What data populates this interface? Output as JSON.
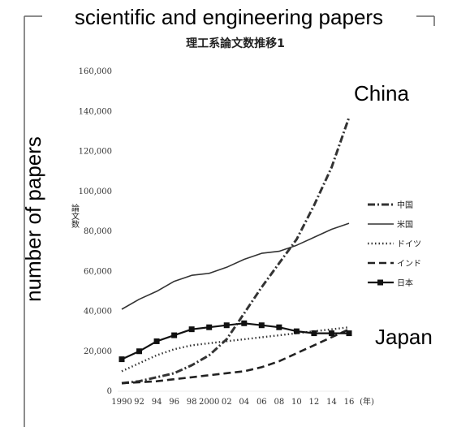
{
  "overlay": {
    "title": "scientific and engineering papers",
    "ylabel": "number of papers",
    "annotation_top": "China",
    "annotation_bottom": "Japan"
  },
  "chart_data": {
    "type": "line",
    "title": "理工系論文数推移1",
    "ylabel": "論文数",
    "xlabel": "(年)",
    "ylim": [
      0,
      160000
    ],
    "y_ticks": [
      "0",
      "20,000",
      "40,000",
      "60,000",
      "80,000",
      "100,000",
      "120,000",
      "140,000",
      "160,000"
    ],
    "x": [
      1990,
      1992,
      1994,
      1996,
      1998,
      2000,
      2002,
      2004,
      2006,
      2008,
      2010,
      2012,
      2014,
      2016
    ],
    "x_tick_labels": [
      "1990",
      "92",
      "94",
      "96",
      "98",
      "2000",
      "02",
      "04",
      "06",
      "08",
      "10",
      "12",
      "14",
      "16"
    ],
    "legend_position": "right",
    "series": [
      {
        "name": "中国",
        "style": "dash-dot",
        "color": "#333333",
        "values": [
          4000,
          5000,
          7000,
          9000,
          13000,
          18000,
          26000,
          39000,
          52000,
          64000,
          76000,
          93000,
          112000,
          137000
        ]
      },
      {
        "name": "米国",
        "style": "solid",
        "color": "#333333",
        "values": [
          41000,
          46000,
          50000,
          55000,
          58000,
          59000,
          62000,
          66000,
          69000,
          70000,
          73000,
          77000,
          81000,
          84000
        ]
      },
      {
        "name": "ドイツ",
        "style": "dotted",
        "color": "#333333",
        "values": [
          10000,
          14000,
          18000,
          21000,
          23000,
          24000,
          25000,
          26000,
          27000,
          28000,
          29000,
          30000,
          31000,
          32000
        ]
      },
      {
        "name": "インド",
        "style": "dashed",
        "color": "#222222",
        "values": [
          4000,
          4500,
          5000,
          6000,
          7000,
          8000,
          9000,
          10000,
          12000,
          15000,
          19000,
          23000,
          27000,
          31000
        ]
      },
      {
        "name": "日本",
        "style": "square-marker",
        "color": "#111111",
        "values": [
          16000,
          20000,
          25000,
          28000,
          31000,
          32000,
          33000,
          34000,
          33000,
          32000,
          30000,
          29000,
          29000,
          29000
        ]
      }
    ]
  }
}
